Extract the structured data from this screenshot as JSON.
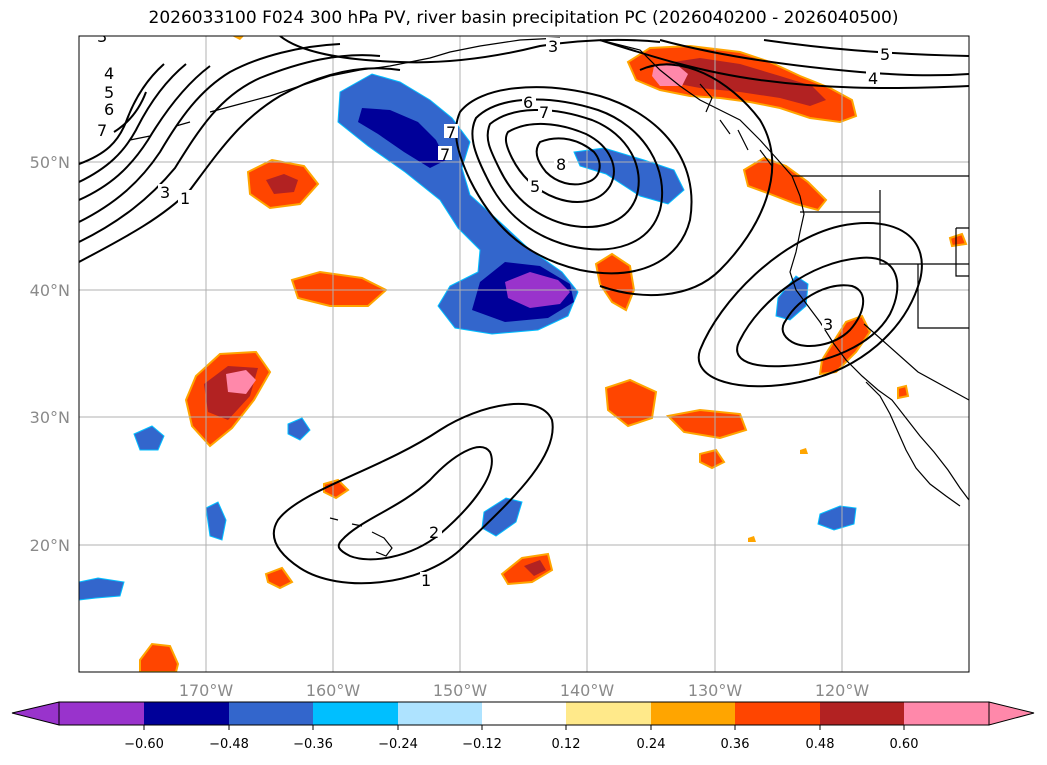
{
  "title": "2026033100 F024 300 hPa PV, river basin precipitation PC (2026040200 - 2026040500)",
  "map": {
    "lat_labels": [
      "50°N",
      "40°N",
      "30°N",
      "20°N"
    ],
    "lon_labels": [
      "170°W",
      "160°W",
      "150°W",
      "140°W",
      "130°W",
      "120°W"
    ],
    "contour_labels": [
      "3",
      "4",
      "5",
      "6",
      "7",
      "1",
      "3",
      "6",
      "7",
      "8",
      "5",
      "7",
      "7",
      "3",
      "5",
      "4",
      "3",
      "2",
      "1"
    ],
    "colors": {
      "neg_060": "#9933cc",
      "neg_048": "#000099",
      "neg_036": "#3366cc",
      "neg_024": "#00bfff",
      "neg_012": "#aee3ff",
      "pos_024": "#ffa500",
      "pos_036": "#ff4500",
      "pos_048": "#b22222",
      "pos_060": "#ff88aa",
      "pos_012": "#ffe98a",
      "coast": "#000000"
    }
  },
  "colorbar": {
    "ticks": [
      "−0.60",
      "−0.48",
      "−0.36",
      "−0.24",
      "−0.12",
      "0.12",
      "0.24",
      "0.36",
      "0.48",
      "0.60"
    ],
    "colors": [
      "#9933cc",
      "#000099",
      "#3366cc",
      "#00bfff",
      "#aee3ff",
      "#ffffff",
      "#ffe98a",
      "#ffa500",
      "#ff4500",
      "#b22222",
      "#ff88aa"
    ]
  }
}
